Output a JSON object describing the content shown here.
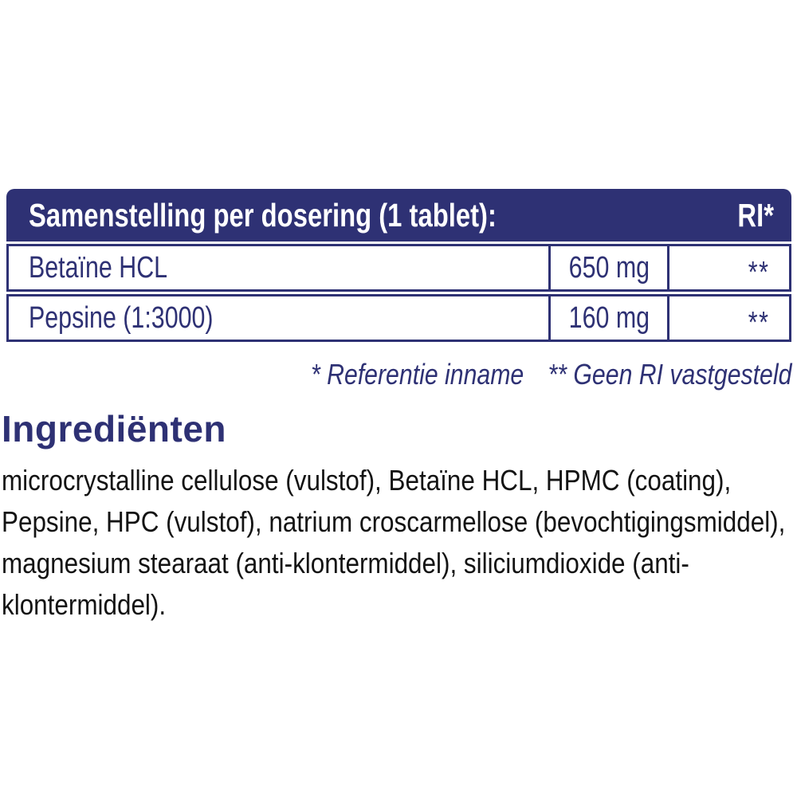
{
  "colors": {
    "navy": "#2e3174",
    "body_text": "#131313",
    "row_background": "#ffffff",
    "header_text": "#ffffff"
  },
  "composition_table": {
    "title": "Samenstelling per dosering (1 tablet):",
    "ri_column_label": "RI*",
    "rows": [
      {
        "name": "Betaïne HCL",
        "amount": "650 mg",
        "ri": "**"
      },
      {
        "name": "Pepsine (1:3000)",
        "amount": "160 mg",
        "ri": "**"
      }
    ]
  },
  "footnotes": {
    "reference": "* Referentie inname",
    "no_ri": "** Geen RI vastgesteld"
  },
  "ingredients": {
    "heading": "Ingrediënten",
    "text": "microcrystalline cellulose (vulstof), Betaïne HCL, HPMC (coating), Pepsine, HPC (vulstof), natrium croscarmellose (bevochtigingsmiddel), magnesium stearaat (anti-klontermiddel), siliciumdioxide (anti-klontermiddel)."
  }
}
